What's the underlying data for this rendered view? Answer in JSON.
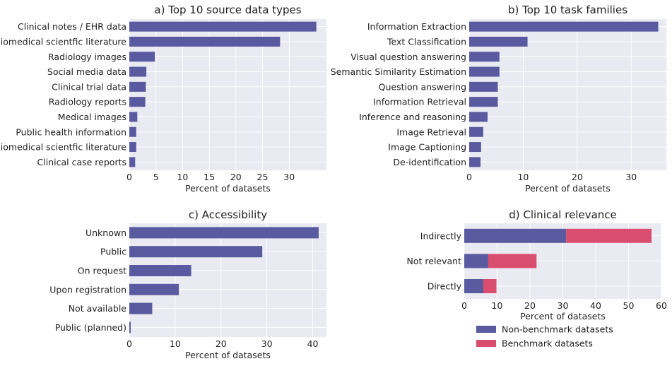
{
  "colors": {
    "panel_bg": "#eaeaf2",
    "grid": "#ffffff",
    "bar": "#5a5aa0",
    "benchmark": "#d94e6e",
    "text": "#222222"
  },
  "chart_data": [
    {
      "type": "bar",
      "orientation": "horizontal",
      "title": "a) Top 10 source data types",
      "xlabel": "Percent of datasets",
      "xlim": [
        0,
        37
      ],
      "xticks": [
        0,
        5,
        10,
        15,
        20,
        25,
        30
      ],
      "categories": [
        "Clinical notes / EHR data",
        "Biomedical scientfic literature",
        "Radiology images",
        "Social media data",
        "Clinical trial data",
        "Radiology reports",
        "Medical images",
        "Public health information",
        "Biomedical scientfic literature",
        "Clinical case reports"
      ],
      "values": [
        35.1,
        28.3,
        4.8,
        3.2,
        3.1,
        3.0,
        1.5,
        1.3,
        1.3,
        1.1
      ],
      "grid": true
    },
    {
      "type": "bar",
      "orientation": "horizontal",
      "title": "b) Top 10 task families",
      "xlabel": "Percent of datasets",
      "xlim": [
        0,
        36.5
      ],
      "xticks": [
        0,
        10,
        20,
        30
      ],
      "categories": [
        "Information Extraction",
        "Text Classification",
        "Visual question answering",
        "Semantic Similarity Estimation",
        "Question answering",
        "Information Retrieval",
        "Inference and reasoning",
        "Image Retrieval",
        "Image Captioning",
        "De-identification"
      ],
      "values": [
        35.0,
        10.8,
        5.6,
        5.6,
        5.3,
        5.3,
        3.4,
        2.6,
        2.2,
        2.1
      ],
      "grid": true
    },
    {
      "type": "bar",
      "orientation": "horizontal",
      "title": "c) Accessibility",
      "xlabel": "Percent of datasets",
      "xlim": [
        0,
        43
      ],
      "xticks": [
        0,
        10,
        20,
        30,
        40
      ],
      "categories": [
        "Unknown",
        "Public",
        "On request",
        "Upon registration",
        "Not available",
        "Public (planned)"
      ],
      "values": [
        41.3,
        29.0,
        13.5,
        10.8,
        5.0,
        0.3
      ],
      "grid": true
    },
    {
      "type": "bar",
      "orientation": "horizontal",
      "stacked": true,
      "title": "d) Clinical relevance",
      "xlabel": "Percent of datasets",
      "xlim": [
        0,
        60
      ],
      "xticks": [
        0,
        10,
        20,
        30,
        40,
        50,
        60
      ],
      "categories": [
        "Indirectly",
        "Not relevant",
        "Directly"
      ],
      "series": [
        {
          "name": "Non-benchmark datasets",
          "values": [
            31.0,
            7.3,
            5.8
          ]
        },
        {
          "name": "Benchmark datasets",
          "values": [
            26.0,
            14.7,
            4.0
          ]
        }
      ],
      "legend": "below",
      "grid": true
    }
  ]
}
